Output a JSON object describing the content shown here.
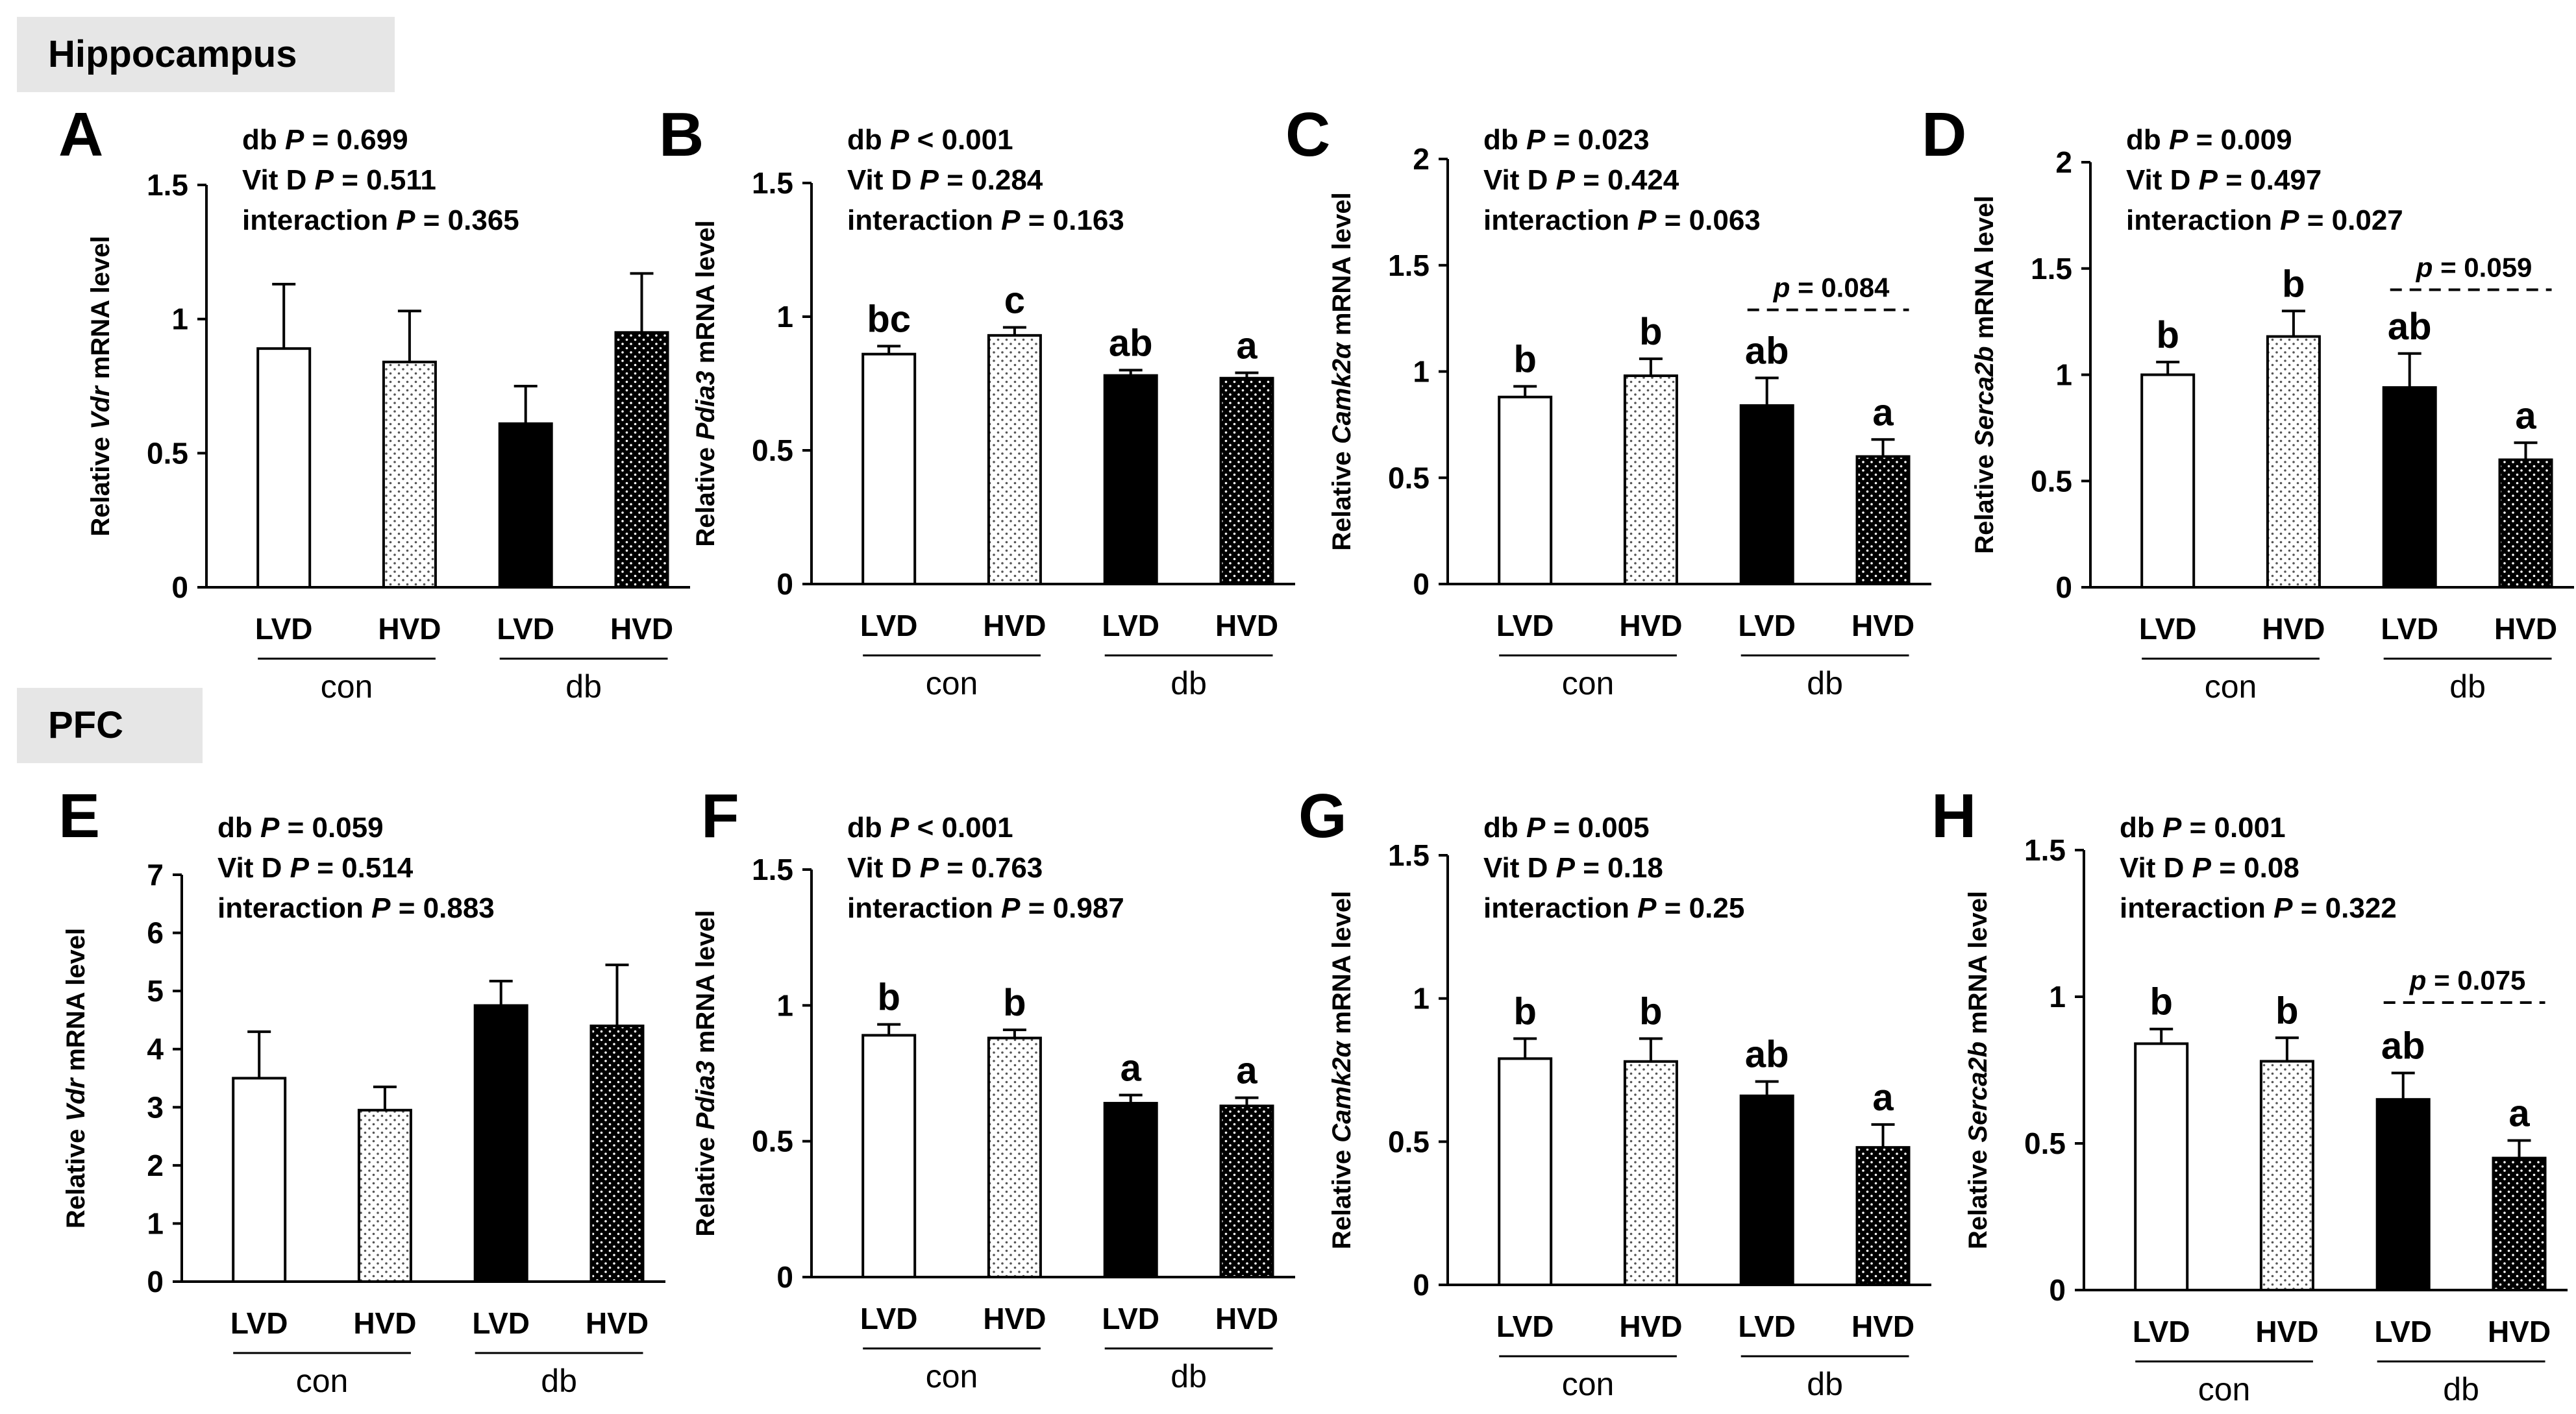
{
  "sections": {
    "hippocampus": "Hippocampus",
    "pfc": "PFC"
  },
  "colors": {
    "bar_outline": "#000000",
    "lvd_fill": "#ffffff",
    "hvd_con_fill": "#ffffff",
    "lvd_db_fill": "#000000",
    "hvd_db_fill": "#000000",
    "section_bg": "#e6e6e6"
  },
  "chart_data": [
    {
      "type": "bar",
      "panel": "A",
      "region": "Hippocampus",
      "gene": "Vdr",
      "ylabel_prefix": "Relative ",
      "ylabel_gene": "Vdr",
      "ylabel_suffix": " mRNA level",
      "ylim": [
        0,
        1.5
      ],
      "yticks": [
        "0",
        "0.5",
        "1",
        "1.5"
      ],
      "ytick_values": [
        0,
        0.5,
        1,
        1.5
      ],
      "categories": [
        "LVD",
        "HVD",
        "LVD",
        "HVD"
      ],
      "groups": [
        "con",
        "db"
      ],
      "values": [
        0.89,
        0.84,
        0.61,
        0.95
      ],
      "errors": [
        0.24,
        0.19,
        0.14,
        0.22
      ],
      "letters": [
        "",
        "",
        "",
        ""
      ],
      "stats": [
        [
          "db",
          "P",
          " = 0.699"
        ],
        [
          "Vit D",
          "P",
          " = 0.511"
        ],
        [
          "interaction",
          "P",
          " = 0.365"
        ]
      ],
      "trend": null
    },
    {
      "type": "bar",
      "panel": "B",
      "region": "Hippocampus",
      "gene": "Pdia3",
      "ylabel_prefix": "Relative ",
      "ylabel_gene": "Pdia3",
      "ylabel_suffix": " mRNA level",
      "ylim": [
        0,
        1.5
      ],
      "yticks": [
        "0",
        "0.5",
        "1",
        "1.5"
      ],
      "ytick_values": [
        0,
        0.5,
        1,
        1.5
      ],
      "categories": [
        "LVD",
        "HVD",
        "LVD",
        "HVD"
      ],
      "groups": [
        "con",
        "db"
      ],
      "values": [
        0.86,
        0.93,
        0.78,
        0.77
      ],
      "errors": [
        0.03,
        0.03,
        0.02,
        0.02
      ],
      "letters": [
        "bc",
        "c",
        "ab",
        "a"
      ],
      "stats": [
        [
          "db",
          "P",
          " < 0.001"
        ],
        [
          "Vit D",
          "P",
          " = 0.284"
        ],
        [
          "interaction",
          "P",
          " = 0.163"
        ]
      ],
      "trend": null
    },
    {
      "type": "bar",
      "panel": "C",
      "region": "Hippocampus",
      "gene": "Camk2α",
      "ylabel_prefix": "Relative ",
      "ylabel_gene": "Camk2α",
      "ylabel_suffix": " mRNA level",
      "ylim": [
        0,
        2
      ],
      "yticks": [
        "0",
        "0.5",
        "1",
        "1.5",
        "2"
      ],
      "ytick_values": [
        0,
        0.5,
        1,
        1.5,
        2
      ],
      "categories": [
        "LVD",
        "HVD",
        "LVD",
        "HVD"
      ],
      "groups": [
        "con",
        "db"
      ],
      "values": [
        0.88,
        0.98,
        0.84,
        0.6
      ],
      "errors": [
        0.05,
        0.08,
        0.13,
        0.08
      ],
      "letters": [
        "b",
        "b",
        "ab",
        "a"
      ],
      "stats": [
        [
          "db",
          "P",
          " = 0.023"
        ],
        [
          "Vit D",
          "P",
          " = 0.424"
        ],
        [
          "interaction",
          "P",
          " = 0.063"
        ]
      ],
      "trend": {
        "label": "p",
        "value_text": " = 0.084",
        "y": 1.29
      }
    },
    {
      "type": "bar",
      "panel": "D",
      "region": "Hippocampus",
      "gene": "Serca2b",
      "ylabel_prefix": "Relative ",
      "ylabel_gene": "Serca2b",
      "ylabel_suffix": " mRNA level",
      "ylim": [
        0,
        2
      ],
      "yticks": [
        "0",
        "0.5",
        "1",
        "1.5",
        "2"
      ],
      "ytick_values": [
        0,
        0.5,
        1,
        1.5,
        2
      ],
      "categories": [
        "LVD",
        "HVD",
        "LVD",
        "HVD"
      ],
      "groups": [
        "con",
        "db"
      ],
      "values": [
        1.0,
        1.18,
        0.94,
        0.6
      ],
      "errors": [
        0.06,
        0.12,
        0.16,
        0.08
      ],
      "letters": [
        "b",
        "b",
        "ab",
        "a"
      ],
      "stats": [
        [
          "db",
          "P",
          " = 0.009"
        ],
        [
          "Vit D",
          "P",
          " = 0.497"
        ],
        [
          "interaction",
          "P",
          " = 0.027"
        ]
      ],
      "trend": {
        "label": "p",
        "value_text": " = 0.059",
        "y": 1.4
      }
    },
    {
      "type": "bar",
      "panel": "E",
      "region": "PFC",
      "gene": "Vdr",
      "ylabel_prefix": "Relative ",
      "ylabel_gene": "Vdr",
      "ylabel_suffix": " mRNA level",
      "ylim": [
        0,
        7
      ],
      "yticks": [
        "0",
        "1",
        "2",
        "3",
        "4",
        "5",
        "6",
        "7"
      ],
      "ytick_values": [
        0,
        1,
        2,
        3,
        4,
        5,
        6,
        7
      ],
      "categories": [
        "LVD",
        "HVD",
        "LVD",
        "HVD"
      ],
      "groups": [
        "con",
        "db"
      ],
      "values": [
        3.5,
        2.95,
        4.75,
        4.4
      ],
      "errors": [
        0.8,
        0.4,
        0.42,
        1.05
      ],
      "letters": [
        "",
        "",
        "",
        ""
      ],
      "stats": [
        [
          "db",
          "P",
          " = 0.059"
        ],
        [
          "Vit D",
          "P",
          " = 0.514"
        ],
        [
          "interaction",
          "P",
          " = 0.883"
        ]
      ],
      "trend": null
    },
    {
      "type": "bar",
      "panel": "F",
      "region": "PFC",
      "gene": "Pdia3",
      "ylabel_prefix": "Relative ",
      "ylabel_gene": "Pdia3",
      "ylabel_suffix": " mRNA level",
      "ylim": [
        0,
        1.5
      ],
      "yticks": [
        "0",
        "0.5",
        "1",
        "1.5"
      ],
      "ytick_values": [
        0,
        0.5,
        1,
        1.5
      ],
      "categories": [
        "LVD",
        "HVD",
        "LVD",
        "HVD"
      ],
      "groups": [
        "con",
        "db"
      ],
      "values": [
        0.89,
        0.88,
        0.64,
        0.63
      ],
      "errors": [
        0.04,
        0.03,
        0.03,
        0.03
      ],
      "letters": [
        "b",
        "b",
        "a",
        "a"
      ],
      "stats": [
        [
          "db",
          "P",
          " < 0.001"
        ],
        [
          "Vit D",
          "P",
          " = 0.763"
        ],
        [
          "interaction",
          "P",
          " = 0.987"
        ]
      ],
      "trend": null
    },
    {
      "type": "bar",
      "panel": "G",
      "region": "PFC",
      "gene": "Camk2α",
      "ylabel_prefix": "Relative ",
      "ylabel_gene": "Camk2α",
      "ylabel_suffix": " mRNA level",
      "ylim": [
        0,
        1.5
      ],
      "yticks": [
        "0",
        "0.5",
        "1",
        "1.5"
      ],
      "ytick_values": [
        0,
        0.5,
        1,
        1.5
      ],
      "categories": [
        "LVD",
        "HVD",
        "LVD",
        "HVD"
      ],
      "groups": [
        "con",
        "db"
      ],
      "values": [
        0.79,
        0.78,
        0.66,
        0.48
      ],
      "errors": [
        0.07,
        0.08,
        0.05,
        0.08
      ],
      "letters": [
        "b",
        "b",
        "ab",
        "a"
      ],
      "stats": [
        [
          "db",
          "P",
          " = 0.005"
        ],
        [
          "Vit D",
          "P",
          " = 0.18"
        ],
        [
          "interaction",
          "P",
          " = 0.25"
        ]
      ],
      "trend": null
    },
    {
      "type": "bar",
      "panel": "H",
      "region": "PFC",
      "gene": "Serca2b",
      "ylabel_prefix": "Relative ",
      "ylabel_gene": "Serca2b",
      "ylabel_suffix": " mRNA level",
      "ylim": [
        0,
        1.5
      ],
      "yticks": [
        "0",
        "0.5",
        "1",
        "1.5"
      ],
      "ytick_values": [
        0,
        0.5,
        1,
        1.5
      ],
      "categories": [
        "LVD",
        "HVD",
        "LVD",
        "HVD"
      ],
      "groups": [
        "con",
        "db"
      ],
      "values": [
        0.84,
        0.78,
        0.65,
        0.45
      ],
      "errors": [
        0.05,
        0.08,
        0.09,
        0.06
      ],
      "letters": [
        "b",
        "b",
        "ab",
        "a"
      ],
      "stats": [
        [
          "db",
          "P",
          " = 0.001"
        ],
        [
          "Vit D",
          "P",
          " = 0.08"
        ],
        [
          "interaction",
          "P",
          " = 0.322"
        ]
      ],
      "trend": {
        "label": "p",
        "value_text": " = 0.075",
        "y": 0.98
      }
    }
  ]
}
